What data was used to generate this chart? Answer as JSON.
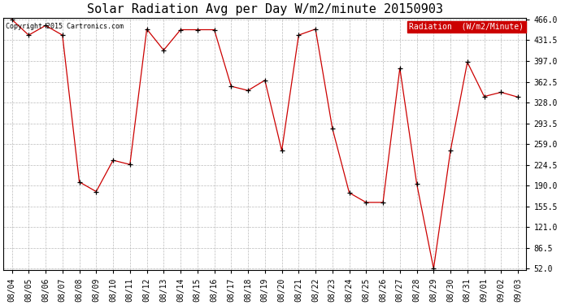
{
  "title": "Solar Radiation Avg per Day W/m2/minute 20150903",
  "copyright": "Copyright 2015 Cartronics.com",
  "legend_label": "Radiation  (W/m2/Minute)",
  "dates": [
    "08/04",
    "08/05",
    "08/06",
    "08/07",
    "08/08",
    "08/09",
    "08/10",
    "08/11",
    "08/12",
    "08/13",
    "08/14",
    "08/15",
    "08/16",
    "08/17",
    "08/18",
    "08/19",
    "08/20",
    "08/21",
    "08/22",
    "08/23",
    "08/24",
    "08/25",
    "08/26",
    "08/27",
    "08/28",
    "08/29",
    "08/30",
    "08/31",
    "09/01",
    "09/02",
    "09/03"
  ],
  "values": [
    466.0,
    440.0,
    456.0,
    440.0,
    196.0,
    180.0,
    232.0,
    225.0,
    450.0,
    415.0,
    449.0,
    449.0,
    449.0,
    355.0,
    348.0,
    365.0,
    248.0,
    440.0,
    450.0,
    285.0,
    178.0,
    162.0,
    162.0,
    385.0,
    193.0,
    52.0,
    248.0,
    395.0,
    338.0,
    345.0,
    337.0
  ],
  "line_color": "#cc0000",
  "marker_color": "#000000",
  "background_color": "#ffffff",
  "grid_color": "#bbbbbb",
  "legend_bg": "#cc0000",
  "legend_text_color": "#ffffff",
  "ymin": 52.0,
  "ymax": 466.0,
  "yticks": [
    52.0,
    86.5,
    121.0,
    155.5,
    190.0,
    224.5,
    259.0,
    293.5,
    328.0,
    362.5,
    397.0,
    431.5,
    466.0
  ],
  "title_fontsize": 11,
  "tick_fontsize": 7,
  "copyright_fontsize": 6,
  "legend_fontsize": 7
}
